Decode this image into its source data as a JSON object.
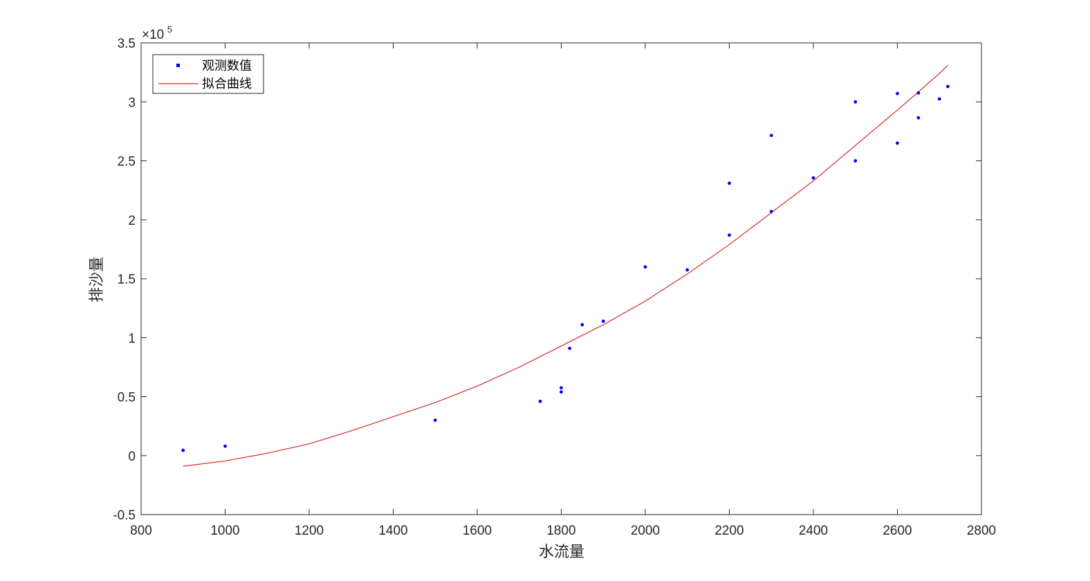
{
  "chart_data": {
    "type": "scatter",
    "title": "",
    "xlabel": "水流量",
    "ylabel": "排沙量",
    "xlim": [
      800,
      2800
    ],
    "ylim": [
      -0.5,
      3.5
    ],
    "xticks": [
      "800",
      "1000",
      "1200",
      "1400",
      "1600",
      "1800",
      "2000",
      "2200",
      "2400",
      "2600",
      "2800"
    ],
    "yticks": [
      "-0.5",
      "0",
      "0.5",
      "1",
      "1.5",
      "2",
      "2.5",
      "3",
      "3.5"
    ],
    "y_multiplier": {
      "base": "×10",
      "exponent": "5"
    },
    "grid": false,
    "legend_position": "top-left",
    "series": [
      {
        "name": "观测数值",
        "kind": "points",
        "color": "#0000ff",
        "points": [
          [
            900,
            0.045
          ],
          [
            1000,
            0.08
          ],
          [
            1500,
            0.3
          ],
          [
            1750,
            0.46
          ],
          [
            1800,
            0.54
          ],
          [
            1800,
            0.575
          ],
          [
            1820,
            0.91
          ],
          [
            1850,
            1.11
          ],
          [
            1900,
            1.14
          ],
          [
            2000,
            1.6
          ],
          [
            2100,
            1.575
          ],
          [
            2200,
            1.87
          ],
          [
            2200,
            2.31
          ],
          [
            2300,
            2.07
          ],
          [
            2300,
            2.715
          ],
          [
            2400,
            2.355
          ],
          [
            2500,
            2.5
          ],
          [
            2500,
            3.0
          ],
          [
            2600,
            2.65
          ],
          [
            2600,
            3.07
          ],
          [
            2650,
            2.865
          ],
          [
            2650,
            3.075
          ],
          [
            2700,
            3.025
          ],
          [
            2720,
            3.13
          ]
        ]
      },
      {
        "name": "拟合曲线",
        "kind": "line",
        "color": "#d62728",
        "x": [
          900,
          1000,
          1100,
          1200,
          1300,
          1400,
          1500,
          1600,
          1700,
          1800,
          1900,
          2000,
          2100,
          2200,
          2300,
          2400,
          2500,
          2600,
          2700,
          2720
        ],
        "y": [
          -0.09,
          -0.045,
          0.02,
          0.1,
          0.21,
          0.33,
          0.45,
          0.59,
          0.75,
          0.93,
          1.11,
          1.31,
          1.54,
          1.79,
          2.06,
          2.33,
          2.63,
          2.93,
          3.24,
          3.31
        ]
      }
    ]
  }
}
